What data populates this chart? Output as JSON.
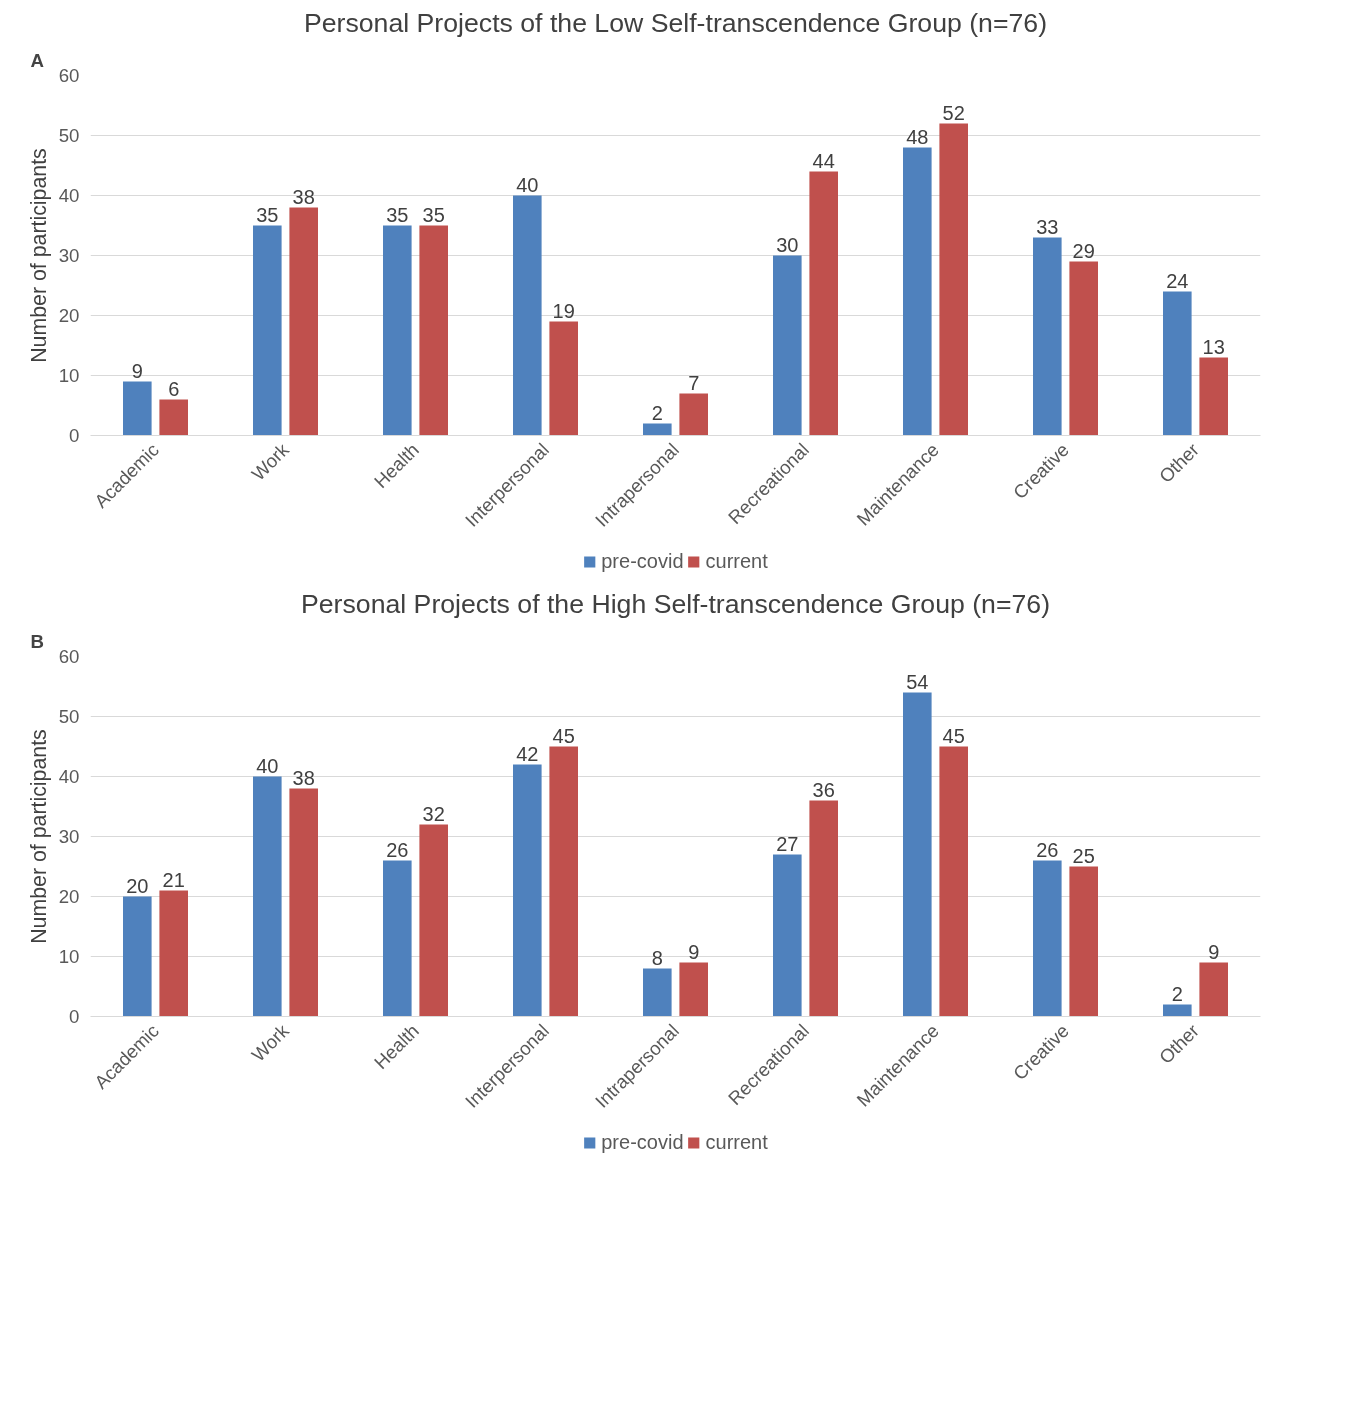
{
  "chart_data": [
    {
      "type": "bar",
      "title": "Personal Projects of the Low Self-transcendence Group (n=76)",
      "ylabel": "Number of participants",
      "annotations": [
        "A"
      ],
      "categories": [
        "Academic",
        "Work",
        "Health",
        "Interpersonal",
        "Intrapersonal",
        "Recreational",
        "Maintenance",
        "Creative",
        "Other"
      ],
      "series": [
        {
          "name": "pre-covid",
          "color": "#4f81bd",
          "values": [
            9,
            35,
            35,
            40,
            2,
            30,
            48,
            33,
            24
          ]
        },
        {
          "name": "current",
          "color": "#c0504d",
          "values": [
            6,
            38,
            35,
            19,
            7,
            44,
            52,
            29,
            13
          ]
        }
      ],
      "ylim": [
        0,
        60
      ],
      "yticks": [
        0,
        10,
        20,
        30,
        40,
        50,
        60
      ],
      "grid": "y",
      "legend": "bottom",
      "data_labels": true
    },
    {
      "type": "bar",
      "title": "Personal Projects of the High Self-transcendence Group (n=76)",
      "ylabel": "Number of participants",
      "annotations": [
        "B"
      ],
      "categories": [
        "Academic",
        "Work",
        "Health",
        "Interpersonal",
        "Intrapersonal",
        "Recreational",
        "Maintenance",
        "Creative",
        "Other"
      ],
      "series": [
        {
          "name": "pre-covid",
          "color": "#4f81bd",
          "values": [
            20,
            40,
            26,
            42,
            8,
            27,
            54,
            26,
            2
          ]
        },
        {
          "name": "current",
          "color": "#c0504d",
          "values": [
            21,
            38,
            32,
            45,
            9,
            36,
            45,
            25,
            9
          ]
        }
      ],
      "ylim": [
        0,
        60
      ],
      "yticks": [
        0,
        10,
        20,
        30,
        40,
        50,
        60
      ],
      "grid": "y",
      "legend": "bottom",
      "data_labels": true
    }
  ]
}
